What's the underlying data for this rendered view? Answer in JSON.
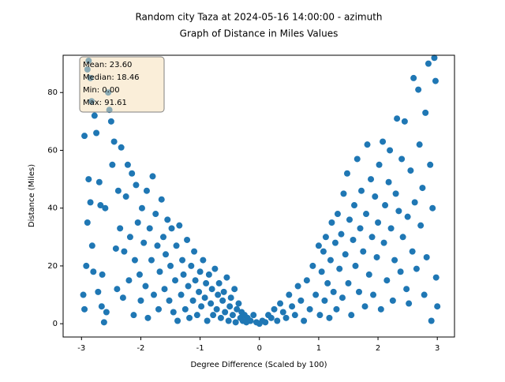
{
  "chart_data": {
    "type": "scatter",
    "title": "Random city Taza at 2024-05-16 14:00:00  - azimuth",
    "subtitle": "Graph of Distance in Miles Values",
    "x_label": "Degree Difference (Scaled by 100)",
    "y_label": "Distance (Miles)",
    "color": "#1f77b4",
    "annotations": [
      "Mean: 23.60",
      "Median: 18.46",
      "Min: 0.00",
      "Max: 91.61"
    ],
    "xlim": [
      -3.31,
      3.29
    ],
    "ylim": [
      -4.6,
      92.9
    ],
    "xticks": [
      -3,
      -2,
      -1,
      0,
      1,
      2,
      3
    ],
    "yticks": [
      0,
      20,
      40,
      60,
      80
    ],
    "x": [
      -2.95,
      -2.9,
      -2.88,
      -2.85,
      -2.83,
      -2.97,
      -2.95,
      -2.92,
      -2.9,
      -2.88,
      -2.85,
      -2.82,
      -2.8,
      -2.78,
      -2.75,
      -2.72,
      -2.7,
      -2.68,
      -2.66,
      -2.65,
      -2.62,
      -2.6,
      -2.58,
      -2.55,
      -2.53,
      -2.5,
      -2.48,
      -2.45,
      -2.42,
      -2.4,
      -2.38,
      -2.35,
      -2.33,
      -2.3,
      -2.28,
      -2.25,
      -2.22,
      -2.2,
      -2.18,
      -2.15,
      -2.12,
      -2.1,
      -2.08,
      -2.05,
      -2.02,
      -2,
      -1.98,
      -1.95,
      -1.92,
      -1.9,
      -1.88,
      -1.85,
      -1.82,
      -1.8,
      -1.78,
      -1.75,
      -1.72,
      -1.7,
      -1.68,
      -1.65,
      -1.62,
      -1.6,
      -1.58,
      -1.55,
      -1.52,
      -1.5,
      -1.48,
      -1.45,
      -1.42,
      -1.4,
      -1.38,
      -1.35,
      -1.32,
      -1.3,
      -1.28,
      -1.25,
      -1.22,
      -1.2,
      -1.18,
      -1.15,
      -1.12,
      -1.1,
      -1.08,
      -1.05,
      -1.02,
      -1,
      -0.98,
      -0.95,
      -0.92,
      -0.9,
      -0.88,
      -0.85,
      -0.82,
      -0.8,
      -0.78,
      -0.75,
      -0.72,
      -0.7,
      -0.68,
      -0.65,
      -0.62,
      -0.6,
      -0.58,
      -0.55,
      -0.52,
      -0.5,
      -0.48,
      -0.45,
      -0.42,
      -0.4,
      -0.38,
      -0.35,
      -0.32,
      -0.3,
      -0.28,
      -0.25,
      -0.22,
      -0.2,
      -0.15,
      -0.1,
      -0.05,
      0,
      0.05,
      0.1,
      0.15,
      0.2,
      0.25,
      0.3,
      0.35,
      0.4,
      0.45,
      0.5,
      0.55,
      0.6,
      0.65,
      0.7,
      0.75,
      0.8,
      0.85,
      0.9,
      0.95,
      1,
      1.02,
      1.05,
      1.08,
      1.1,
      1.12,
      1.15,
      1.18,
      1.2,
      1.22,
      1.25,
      1.28,
      1.3,
      1.32,
      1.35,
      1.38,
      1.4,
      1.42,
      1.45,
      1.48,
      1.5,
      1.52,
      1.55,
      1.58,
      1.6,
      1.62,
      1.65,
      1.68,
      1.7,
      1.72,
      1.75,
      1.78,
      1.8,
      1.82,
      1.85,
      1.88,
      1.9,
      1.92,
      1.95,
      1.98,
      2,
      2.02,
      2.05,
      2.08,
      2.1,
      2.12,
      2.15,
      2.18,
      2.2,
      2.22,
      2.25,
      2.28,
      2.3,
      2.32,
      2.35,
      2.38,
      2.4,
      2.42,
      2.45,
      2.48,
      2.5,
      2.52,
      2.55,
      2.58,
      2.6,
      2.62,
      2.65,
      2.68,
      2.7,
      2.72,
      2.75,
      2.78,
      2.8,
      2.82,
      2.85,
      2.88,
      2.9,
      2.92,
      2.95,
      2.97,
      2.98,
      3
    ],
    "y": [
      65,
      88,
      91,
      85,
      77,
      10,
      5,
      20,
      35,
      50,
      42,
      27,
      18,
      72,
      66,
      11,
      49,
      41,
      6,
      17,
      0.5,
      40,
      4,
      80,
      74,
      70,
      55,
      63,
      26,
      12,
      46,
      33,
      61,
      9,
      25,
      44,
      55,
      15,
      30,
      52,
      3,
      22,
      48,
      35,
      17,
      8,
      40,
      28,
      13,
      46,
      2,
      33,
      22,
      51,
      10,
      38,
      27,
      5,
      18,
      43,
      30,
      12,
      24,
      36,
      8,
      20,
      33,
      4,
      15,
      27,
      1,
      34,
      10,
      22,
      17,
      5,
      29,
      13,
      2,
      20,
      8,
      25,
      15,
      3,
      11,
      18,
      6,
      22,
      9,
      14,
      1,
      17,
      7,
      12,
      3,
      19,
      5,
      10,
      14,
      2,
      8,
      11,
      4,
      16,
      1,
      6,
      9,
      3,
      12,
      0.5,
      5,
      7,
      2,
      4,
      1,
      3,
      0.5,
      2,
      1,
      3,
      0.5,
      0,
      1,
      0.5,
      3,
      2,
      5,
      1,
      7,
      4,
      2,
      10,
      6,
      3,
      13,
      8,
      1,
      15,
      5,
      20,
      10,
      27,
      3,
      18,
      25,
      8,
      30,
      14,
      2,
      22,
      35,
      11,
      28,
      5,
      38,
      19,
      31,
      9,
      45,
      24,
      52,
      14,
      36,
      3,
      29,
      41,
      20,
      57,
      11,
      33,
      46,
      25,
      6,
      38,
      62,
      17,
      50,
      30,
      10,
      44,
      23,
      35,
      55,
      5,
      63,
      28,
      41,
      15,
      49,
      60,
      33,
      8,
      22,
      45,
      71,
      39,
      18,
      57,
      30,
      70,
      12,
      37,
      7,
      53,
      25,
      85,
      42,
      19,
      81,
      62,
      34,
      47,
      10,
      73,
      23,
      90,
      55,
      1,
      40,
      92,
      84,
      16,
      6
    ]
  }
}
